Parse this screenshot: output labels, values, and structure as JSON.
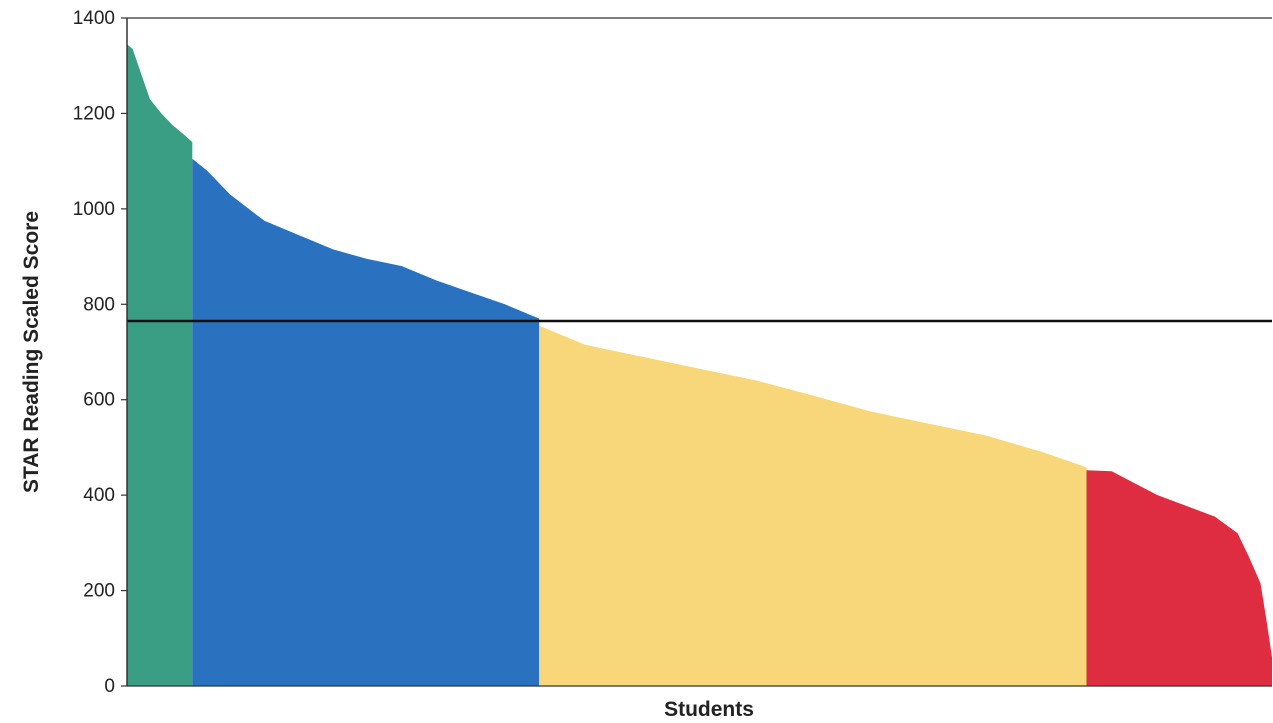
{
  "chart_data": {
    "type": "area",
    "title": "",
    "xlabel": "Students",
    "ylabel": "STAR Reading Scaled Score",
    "ylim": [
      0,
      1400
    ],
    "yticks": [
      "0",
      "200",
      "400",
      "600",
      "800",
      "1000",
      "1200",
      "1400"
    ],
    "grid": false,
    "legend": "none",
    "benchmark_line": 765,
    "student_count": 1000,
    "series": [
      {
        "color": "#3a9e85",
        "x": [
          0,
          5,
          10,
          20,
          30,
          40,
          50,
          57
        ],
        "values": [
          1345,
          1335,
          1300,
          1230,
          1200,
          1175,
          1155,
          1140
        ]
      },
      {
        "color": "#2a72c0",
        "x": [
          57,
          70,
          90,
          120,
          150,
          180,
          210,
          240,
          270,
          300,
          330,
          360
        ],
        "values": [
          1105,
          1080,
          1030,
          975,
          945,
          915,
          895,
          880,
          850,
          825,
          800,
          770
        ]
      },
      {
        "color": "#f7d77a",
        "x": [
          360,
          400,
          450,
          500,
          550,
          600,
          650,
          700,
          750,
          800,
          830,
          838
        ],
        "values": [
          755,
          715,
          690,
          665,
          640,
          608,
          575,
          550,
          525,
          490,
          465,
          458
        ]
      },
      {
        "color": "#de2c40",
        "x": [
          838,
          860,
          880,
          900,
          950,
          970,
          980,
          990,
          995,
          1000
        ],
        "values": [
          452,
          450,
          425,
          400,
          355,
          320,
          270,
          215,
          140,
          60
        ]
      }
    ]
  }
}
